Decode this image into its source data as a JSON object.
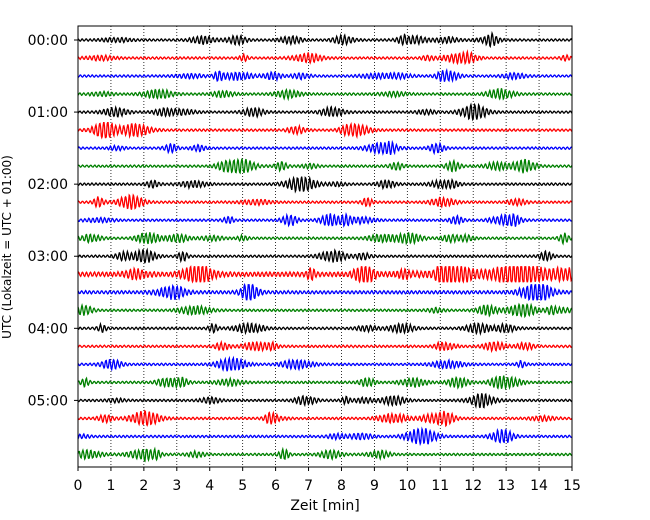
{
  "chart_data": {
    "type": "line",
    "title": "",
    "xlabel": "Zeit  [min]",
    "ylabel": "UTC (Lokalzeit = UTC + 01:00)",
    "xlim": [
      0,
      15
    ],
    "x_ticks": [
      0,
      1,
      2,
      3,
      4,
      5,
      6,
      7,
      8,
      9,
      10,
      11,
      12,
      13,
      14,
      15
    ],
    "x_tick_labels": [
      "0",
      "1",
      "2",
      "3",
      "4",
      "5",
      "6",
      "7",
      "8",
      "9",
      "10",
      "11",
      "12",
      "13",
      "14",
      "15"
    ],
    "y_tick_labels": [
      "00:00",
      "01:00",
      "02:00",
      "03:00",
      "04:00",
      "05:00"
    ],
    "traces_per_hour": 4,
    "trace_minutes": 15,
    "trace_count": 24,
    "trace_colors": [
      "#000000",
      "#ff0000",
      "#0000ff",
      "#008000"
    ],
    "grid": {
      "x": true,
      "style": "dotted"
    },
    "legend": "none"
  }
}
